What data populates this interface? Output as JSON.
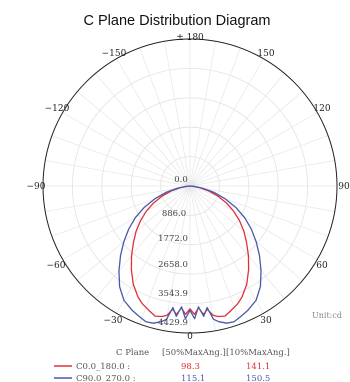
{
  "chart_data": {
    "type": "polar",
    "title": "C Plane Distribution Diagram",
    "unit_label": "Unit:cd",
    "angle_ticks": {
      "top": "180",
      "upper_left": "150",
      "upper_right": "150",
      "left_120": "120",
      "right_120": "120",
      "left_90": "90",
      "right_90": "90",
      "left_60": "60",
      "right_60": "60",
      "bottom_left_30": "30",
      "bottom_right_30": "30",
      "bottom": "0"
    },
    "radial_ticks": [
      "0.0",
      "886.0",
      "1772.0",
      "2658.0",
      "3543.9",
      "4429.9"
    ],
    "rmax": 4429.9,
    "grid": true,
    "legend": {
      "header": "C Plane",
      "col1_header": "[50%MaxAng.]",
      "col2_header": "[10%MaxAng.]",
      "items": [
        {
          "name": "C0.0_180.0 :",
          "color": "#e0303a",
          "v50": "98.3",
          "v10": "141.1"
        },
        {
          "name": "C90.0_270.0 :",
          "color": "#4a5aa8",
          "v50": "115.1",
          "v10": "150.5"
        }
      ]
    },
    "series": [
      {
        "name": "C0.0_180.0",
        "color": "#e0303a",
        "theta": [
          0,
          2,
          4,
          6,
          8,
          10,
          12,
          15,
          18,
          20,
          22,
          25,
          30,
          35,
          40,
          45,
          50,
          55,
          60,
          65,
          70,
          75,
          80,
          85,
          90
        ],
        "r": [
          3700,
          3870,
          3680,
          3890,
          3750,
          3950,
          4020,
          4060,
          3960,
          3890,
          3830,
          3700,
          3420,
          3080,
          2740,
          2410,
          2120,
          1820,
          1520,
          1210,
          900,
          590,
          290,
          80,
          0
        ]
      },
      {
        "name": "C90.0_270.0",
        "color": "#4a5aa8",
        "theta": [
          0,
          2,
          4,
          6,
          8,
          10,
          12,
          15,
          18,
          20,
          22,
          25,
          30,
          35,
          40,
          45,
          50,
          55,
          60,
          65,
          70,
          75,
          80,
          85,
          90
        ],
        "r": [
          3750,
          4000,
          3650,
          3950,
          3700,
          4080,
          4180,
          4280,
          4300,
          4250,
          4200,
          4130,
          3980,
          3700,
          3330,
          2960,
          2600,
          2250,
          1900,
          1520,
          1130,
          760,
          390,
          110,
          0
        ]
      }
    ]
  }
}
